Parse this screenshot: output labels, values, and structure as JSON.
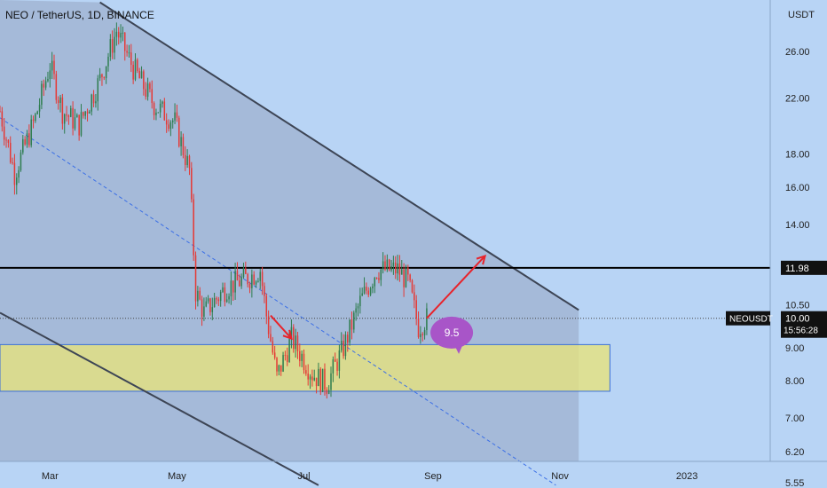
{
  "chart_data": {
    "type": "candlestick",
    "title": "NEO / TetherUS, 1D, BINANCE",
    "currency_label": "USDT",
    "y_scale": "log",
    "ylim": [
      5.55,
      30
    ],
    "x_range": [
      "2022-02-05",
      "2023-02-10"
    ],
    "x_ticks": [
      {
        "label": "Mar",
        "date": "2022-03-01"
      },
      {
        "label": "May",
        "date": "2022-05-01"
      },
      {
        "label": "Jul",
        "date": "2022-07-01"
      },
      {
        "label": "Sep",
        "date": "2022-09-01"
      },
      {
        "label": "Nov",
        "date": "2022-11-01"
      },
      {
        "label": "2023",
        "date": "2023-01-01"
      }
    ],
    "y_ticks": [
      26.0,
      22.0,
      18.0,
      16.0,
      14.0,
      10.5,
      9.0,
      8.0,
      7.0,
      6.2,
      5.55
    ],
    "y_tick_labels": [
      "26.00",
      "22.00",
      "18.00",
      "16.00",
      "14.00",
      "10.50",
      "9.00",
      "8.00",
      "7.00",
      "6.20",
      "5.55"
    ],
    "bullish_color": "#2e7d4f",
    "bearish_color": "#e53935",
    "price_path": [
      {
        "date": "2022-02-05",
        "price": 21.0
      },
      {
        "date": "2022-02-12",
        "price": 16.8
      },
      {
        "date": "2022-02-22",
        "price": 20.5
      },
      {
        "date": "2022-03-01",
        "price": 24.8
      },
      {
        "date": "2022-03-07",
        "price": 21.0
      },
      {
        "date": "2022-03-15",
        "price": 20.0
      },
      {
        "date": "2022-03-25",
        "price": 23.5
      },
      {
        "date": "2022-04-02",
        "price": 28.0
      },
      {
        "date": "2022-04-10",
        "price": 24.5
      },
      {
        "date": "2022-04-20",
        "price": 21.5
      },
      {
        "date": "2022-04-30",
        "price": 20.2
      },
      {
        "date": "2022-05-07",
        "price": 17.0
      },
      {
        "date": "2022-05-10",
        "price": 11.0
      },
      {
        "date": "2022-05-14",
        "price": 10.2
      },
      {
        "date": "2022-05-25",
        "price": 11.2
      },
      {
        "date": "2022-06-05",
        "price": 11.6
      },
      {
        "date": "2022-06-10",
        "price": 11.9
      },
      {
        "date": "2022-06-13",
        "price": 10.1
      },
      {
        "date": "2022-06-18",
        "price": 8.1
      },
      {
        "date": "2022-06-25",
        "price": 9.3
      },
      {
        "date": "2022-07-05",
        "price": 8.2
      },
      {
        "date": "2022-07-12",
        "price": 7.9
      },
      {
        "date": "2022-07-20",
        "price": 9.0
      },
      {
        "date": "2022-07-28",
        "price": 10.6
      },
      {
        "date": "2022-08-05",
        "price": 11.9
      },
      {
        "date": "2022-08-15",
        "price": 11.9
      },
      {
        "date": "2022-08-20",
        "price": 11.4
      },
      {
        "date": "2022-08-25",
        "price": 9.7
      },
      {
        "date": "2022-08-29",
        "price": 10.0
      }
    ],
    "horizontal_line": {
      "price": 11.98,
      "label": "11.98"
    },
    "last_price": {
      "symbol": "NEOUSDT",
      "price": "10.00",
      "countdown": "15:56:28",
      "value": 10.0
    },
    "support_zone": {
      "from": 7.7,
      "to": 9.1,
      "start": "2022-02-05",
      "end": "2022-11-25",
      "color": "#e6e27d"
    },
    "channel": {
      "upper": [
        {
          "date": "2022-03-25",
          "price": 31
        },
        {
          "date": "2022-11-10",
          "price": 10.3
        }
      ],
      "lower": [
        {
          "date": "2022-02-05",
          "price": 10.2
        },
        {
          "date": "2022-07-08",
          "price": 5.5
        }
      ],
      "midline": [
        {
          "date": "2022-02-05",
          "price": 20.5
        },
        {
          "date": "2022-10-30",
          "price": 5.5
        }
      ],
      "fill_end": "2022-11-10"
    },
    "arrows": [
      {
        "from": {
          "date": "2022-06-15",
          "price": 10.1
        },
        "to": {
          "date": "2022-06-25",
          "price": 9.3
        }
      },
      {
        "from": {
          "date": "2022-08-29",
          "price": 10.0
        },
        "to": {
          "date": "2022-09-26",
          "price": 12.5
        }
      }
    ],
    "annotation": {
      "text": "9.5",
      "date": "2022-09-10",
      "price": 9.5,
      "color": "#a855c8"
    }
  }
}
